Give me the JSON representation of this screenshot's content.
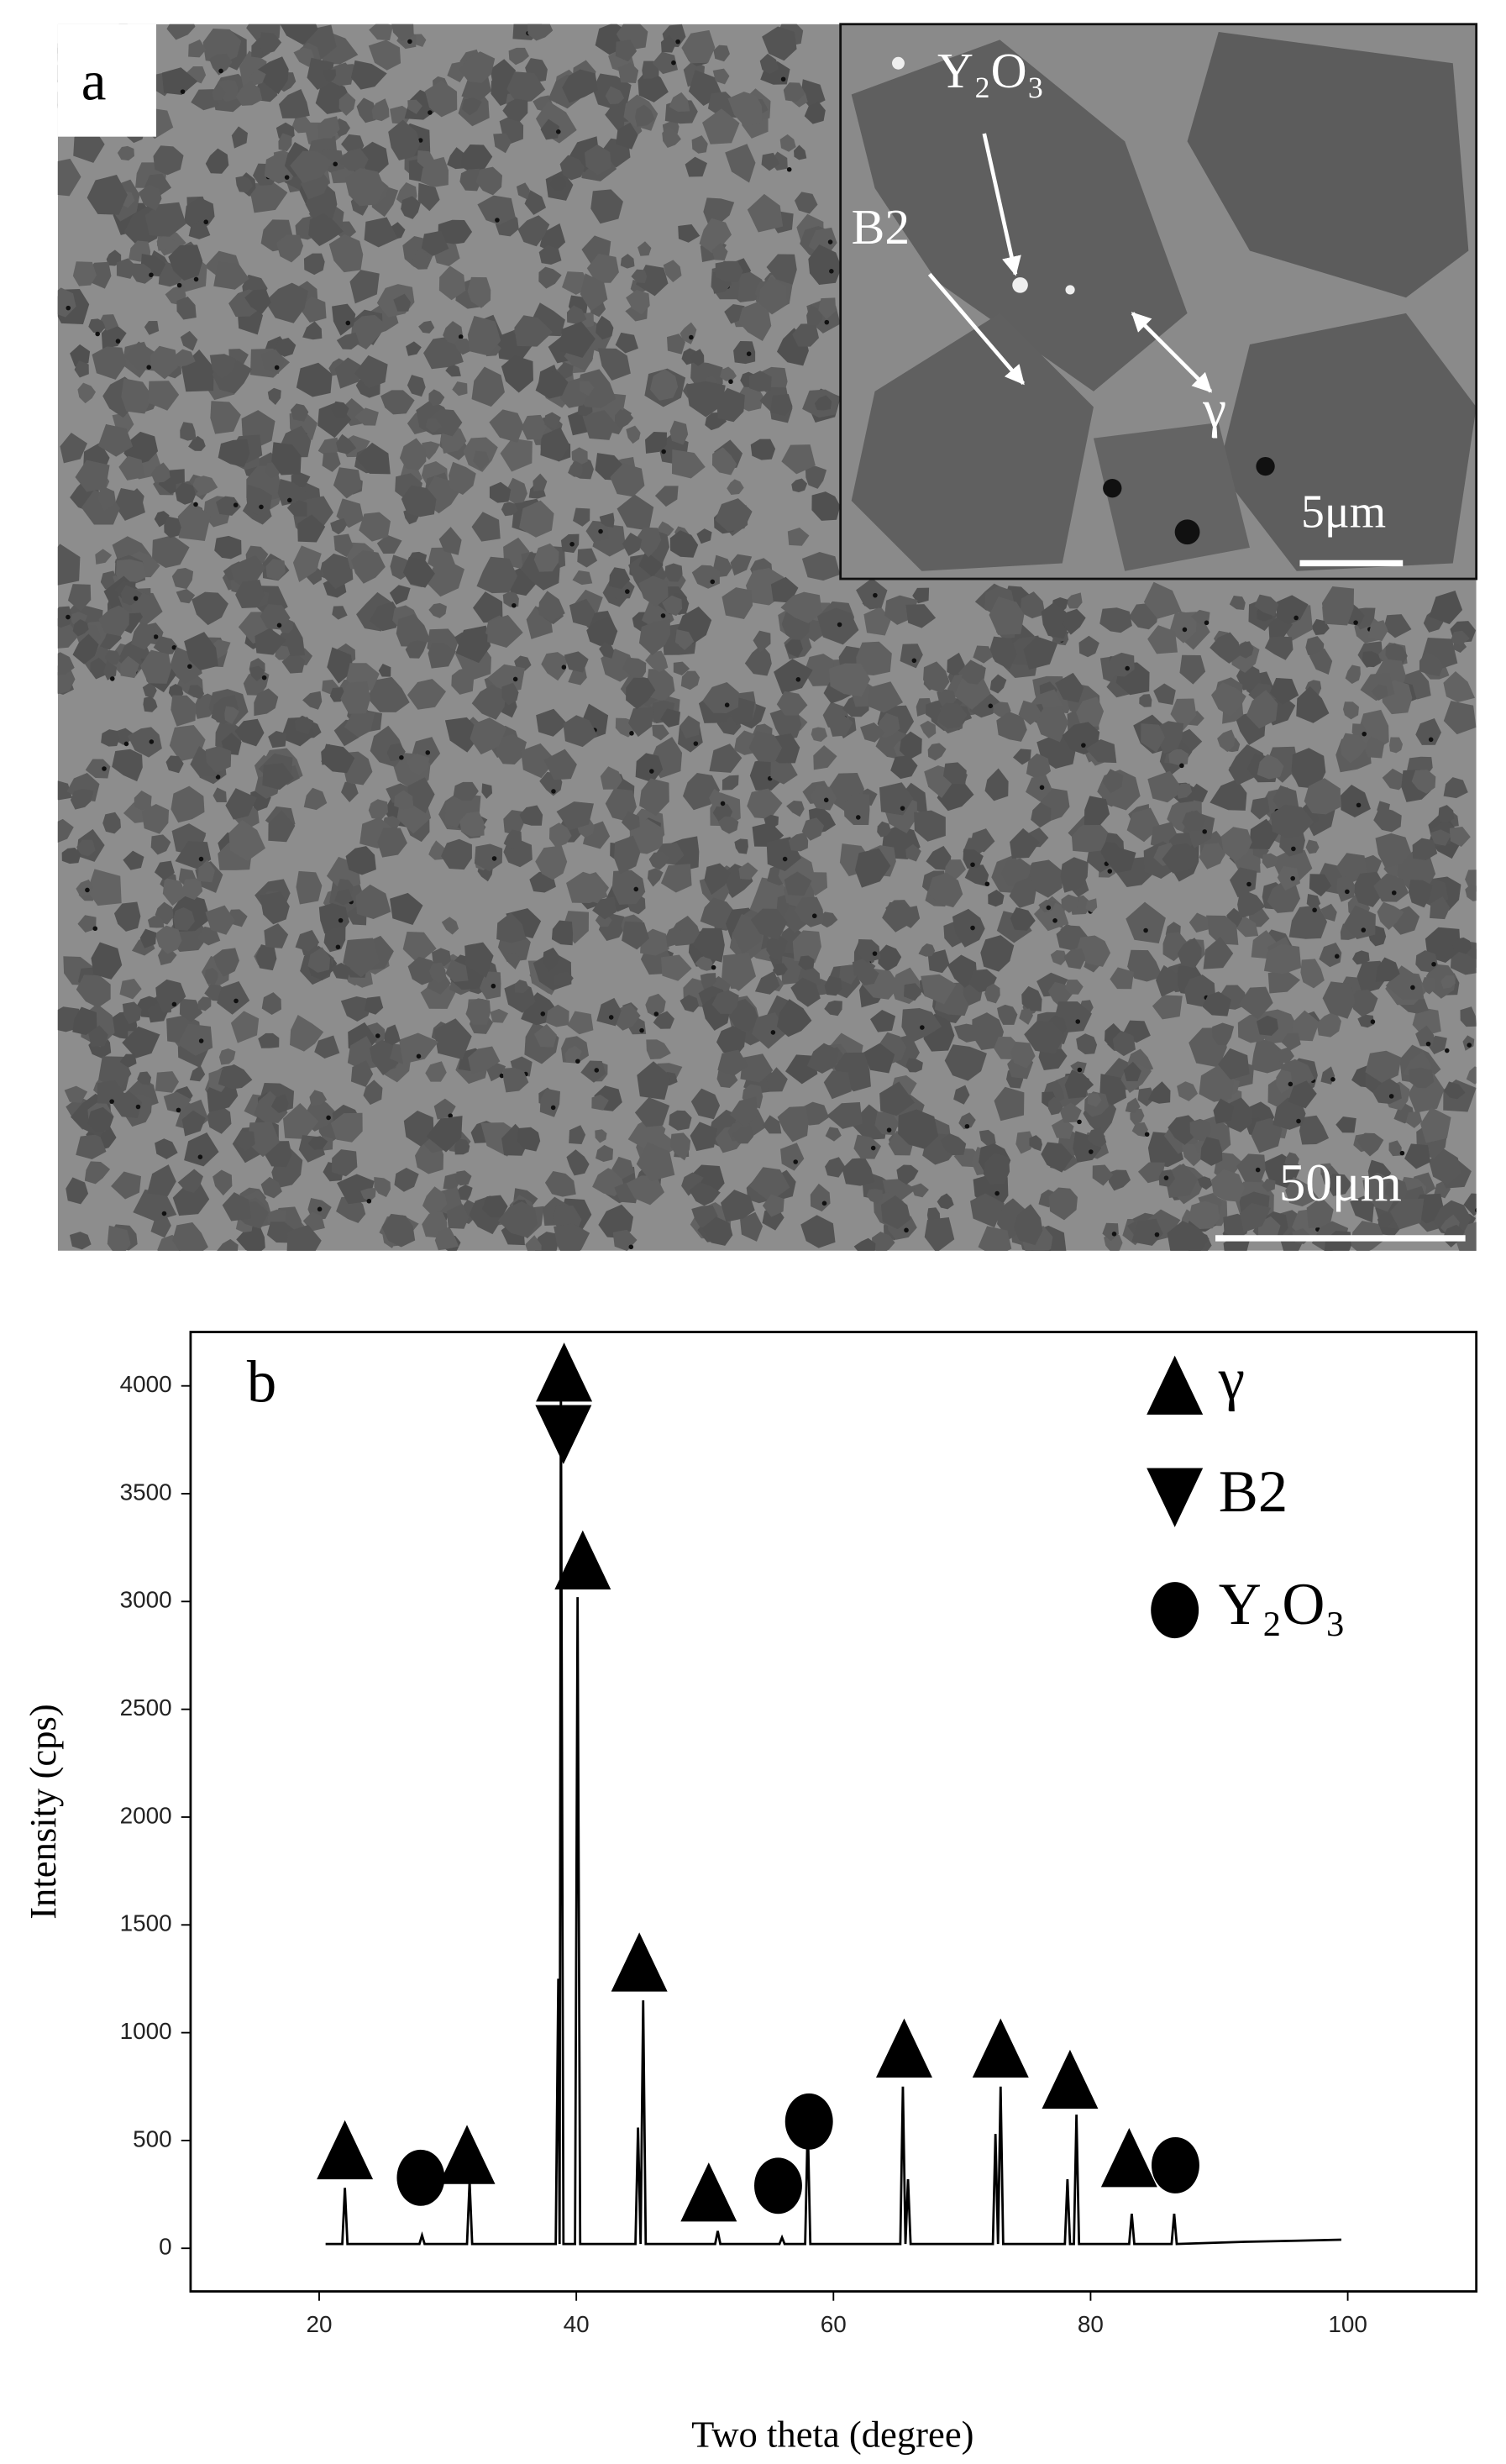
{
  "micrograph": {
    "panel_label": "a",
    "scale_bar": "50μm",
    "inset": {
      "labels": [
        "Y₂O₃",
        "B2",
        "γ"
      ],
      "scale_bar": "5μm"
    }
  },
  "chart_data": {
    "type": "line",
    "panel_label": "b",
    "xlabel": "Two theta (degree)",
    "ylabel": "Intensity (cps)",
    "xlim": [
      10,
      110
    ],
    "ylim": [
      -200,
      4250
    ],
    "xticks": [
      20,
      40,
      60,
      80,
      100
    ],
    "yticks": [
      0,
      500,
      1000,
      1500,
      2000,
      2500,
      3000,
      3500,
      4000
    ],
    "color": "#000000",
    "x": [
      20.5,
      21.8,
      22,
      22.2,
      27.8,
      28,
      28.2,
      31.5,
      31.7,
      31.9,
      38.4,
      38.6,
      38.7,
      38.8,
      39,
      39.9,
      40.1,
      40.3,
      44.6,
      44.8,
      45,
      45.2,
      45.4,
      50.8,
      51,
      51.2,
      55.8,
      56,
      56.2,
      57.8,
      58,
      58.2,
      65.2,
      65.4,
      65.6,
      65.8,
      66,
      72.4,
      72.6,
      72.8,
      73,
      73.2,
      78,
      78.2,
      78.4,
      78.7,
      78.9,
      79.1,
      83,
      83.2,
      83.4,
      86.3,
      86.5,
      86.7,
      92,
      96,
      99.5
    ],
    "values": [
      20,
      20,
      280,
      20,
      20,
      60,
      20,
      20,
      310,
      20,
      20,
      1250,
      20,
      4050,
      20,
      20,
      3020,
      20,
      20,
      560,
      20,
      1150,
      20,
      20,
      80,
      20,
      20,
      50,
      20,
      20,
      580,
      20,
      20,
      750,
      20,
      320,
      20,
      20,
      530,
      20,
      750,
      20,
      20,
      320,
      20,
      20,
      620,
      20,
      20,
      160,
      20,
      20,
      160,
      20,
      30,
      35,
      40
    ],
    "markers": [
      {
        "name": "γ",
        "symbol": "triangle-up",
        "color": "#000000",
        "x": [
          22,
          31.5,
          39.05,
          40.5,
          44.9,
          50.3,
          65.5,
          73,
          78.4,
          83
        ],
        "values": [
          457,
          435,
          4064,
          3193,
          1328,
          261,
          929,
          929,
          784,
          421
        ]
      },
      {
        "name": "B2",
        "symbol": "triangle-down",
        "color": "#000000",
        "x": [
          39
        ],
        "values": [
          3774
        ]
      },
      {
        "name": "Y₂O₃",
        "symbol": "circle",
        "color": "#000000",
        "x": [
          27.9,
          55.7,
          58.1,
          86.6
        ],
        "values": [
          327,
          290,
          588,
          385
        ]
      }
    ]
  }
}
